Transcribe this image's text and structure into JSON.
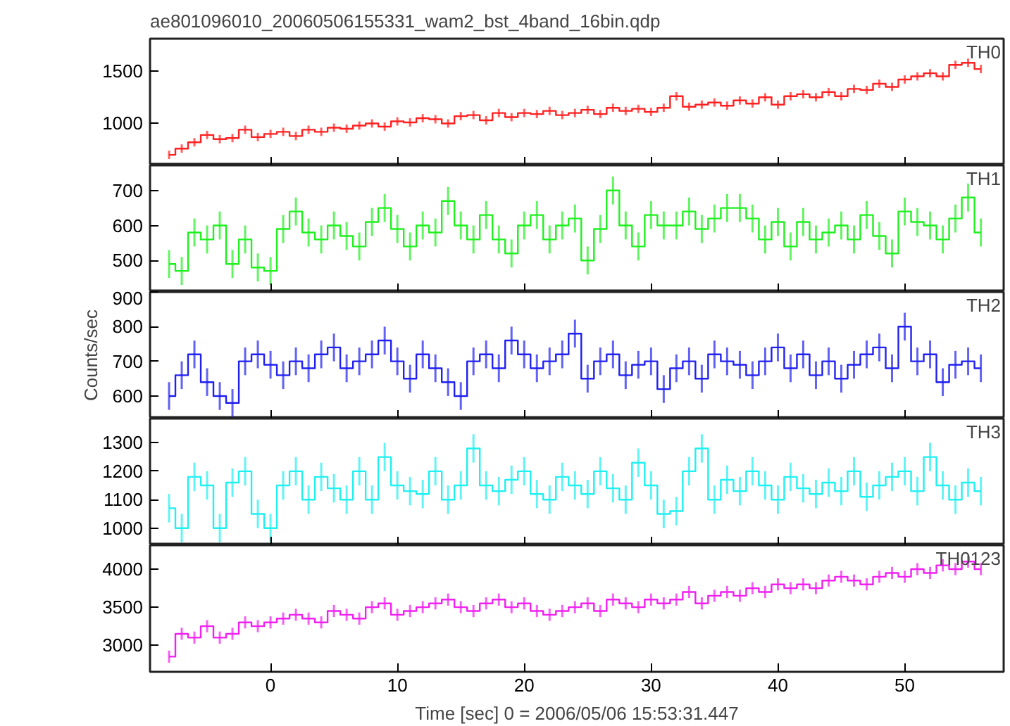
{
  "chart_data": [
    {
      "type": "step",
      "title": "ae801096010_20060506155331_wam2_bst_4band_16bin.qdp",
      "annotations": [
        "TH0"
      ],
      "tick_labels": "y",
      "grid": false,
      "xlim": [
        -9.5,
        57.8
      ],
      "xticks": [
        0,
        10,
        20,
        30,
        40,
        50
      ],
      "ylim": [
        600,
        1810
      ],
      "yticks": [
        1000,
        1500
      ],
      "x": [
        -8,
        -7,
        -6,
        -5,
        -4,
        -3,
        -2,
        -1,
        0,
        1,
        2,
        3,
        4,
        5,
        6,
        7,
        8,
        9,
        10,
        11,
        12,
        13,
        14,
        15,
        16,
        17,
        18,
        19,
        20,
        21,
        22,
        23,
        24,
        25,
        26,
        27,
        28,
        29,
        30,
        31,
        32,
        33,
        34,
        35,
        36,
        37,
        38,
        39,
        40,
        41,
        42,
        43,
        44,
        45,
        46,
        47,
        48,
        49,
        50,
        51,
        52,
        53,
        54,
        55,
        56
      ],
      "series": [
        {
          "color": "#ff2020",
          "values": [
            700,
            760,
            820,
            890,
            850,
            860,
            940,
            870,
            900,
            920,
            880,
            940,
            920,
            960,
            950,
            980,
            1000,
            970,
            1020,
            1010,
            1050,
            1040,
            1000,
            1070,
            1080,
            1030,
            1100,
            1060,
            1100,
            1090,
            1120,
            1080,
            1100,
            1130,
            1090,
            1150,
            1120,
            1140,
            1110,
            1150,
            1260,
            1160,
            1180,
            1200,
            1170,
            1220,
            1190,
            1250,
            1180,
            1260,
            1280,
            1250,
            1300,
            1260,
            1330,
            1320,
            1380,
            1350,
            1420,
            1450,
            1480,
            1450,
            1560,
            1580,
            1520
          ],
          "errors": [
            40,
            40,
            40,
            40,
            40,
            40,
            40,
            40,
            40,
            40,
            40,
            40,
            40,
            40,
            40,
            40,
            40,
            40,
            40,
            40,
            40,
            40,
            40,
            40,
            40,
            40,
            40,
            40,
            40,
            40,
            40,
            40,
            40,
            40,
            40,
            40,
            40,
            40,
            40,
            40,
            40,
            40,
            40,
            40,
            40,
            40,
            40,
            40,
            40,
            40,
            40,
            40,
            40,
            40,
            40,
            40,
            40,
            40,
            40,
            40,
            40,
            40,
            40,
            40,
            40
          ]
        }
      ]
    },
    {
      "type": "step",
      "annotations": [
        "TH1"
      ],
      "tick_labels": "y",
      "grid": false,
      "xlim": [
        -9.5,
        57.8
      ],
      "xticks": [
        0,
        10,
        20,
        30,
        40,
        50
      ],
      "ylim": [
        410,
        772
      ],
      "yticks": [
        500,
        600,
        700
      ],
      "x": [
        -8,
        -7,
        -6,
        -5,
        -4,
        -3,
        -2,
        -1,
        0,
        1,
        2,
        3,
        4,
        5,
        6,
        7,
        8,
        9,
        10,
        11,
        12,
        13,
        14,
        15,
        16,
        17,
        18,
        19,
        20,
        21,
        22,
        23,
        24,
        25,
        26,
        27,
        28,
        29,
        30,
        31,
        32,
        33,
        34,
        35,
        36,
        37,
        38,
        39,
        40,
        41,
        42,
        43,
        44,
        45,
        46,
        47,
        48,
        49,
        50,
        51,
        52,
        53,
        54,
        55,
        56
      ],
      "series": [
        {
          "color": "#20f020",
          "values": [
            490,
            470,
            580,
            560,
            600,
            490,
            560,
            480,
            470,
            590,
            640,
            580,
            560,
            600,
            570,
            540,
            610,
            650,
            590,
            540,
            600,
            580,
            670,
            600,
            560,
            630,
            560,
            520,
            600,
            630,
            560,
            600,
            620,
            500,
            590,
            700,
            600,
            540,
            630,
            600,
            600,
            640,
            590,
            620,
            650,
            650,
            620,
            560,
            610,
            540,
            610,
            560,
            580,
            600,
            560,
            630,
            570,
            520,
            640,
            610,
            600,
            560,
            620,
            680,
            580
          ],
          "errors": [
            40,
            40,
            40,
            40,
            40,
            40,
            40,
            40,
            40,
            40,
            40,
            40,
            40,
            40,
            40,
            40,
            40,
            40,
            40,
            40,
            40,
            40,
            40,
            40,
            40,
            40,
            40,
            40,
            40,
            40,
            40,
            40,
            40,
            40,
            40,
            40,
            40,
            40,
            40,
            40,
            40,
            40,
            40,
            40,
            40,
            40,
            40,
            40,
            40,
            40,
            40,
            40,
            40,
            40,
            40,
            40,
            40,
            40,
            40,
            40,
            40,
            40,
            40,
            40,
            40
          ]
        }
      ]
    },
    {
      "type": "step",
      "annotations": [
        "TH2"
      ],
      "ylabel": "Counts/sec",
      "tick_labels": "y",
      "grid": false,
      "xlim": [
        -9.5,
        57.8
      ],
      "xticks": [
        0,
        10,
        20,
        30,
        40,
        50
      ],
      "ylim": [
        535,
        900
      ],
      "yticks": [
        600,
        700,
        800,
        900
      ],
      "x": [
        -8,
        -7,
        -6,
        -5,
        -4,
        -3,
        -2,
        -1,
        0,
        1,
        2,
        3,
        4,
        5,
        6,
        7,
        8,
        9,
        10,
        11,
        12,
        13,
        14,
        15,
        16,
        17,
        18,
        19,
        20,
        21,
        22,
        23,
        24,
        25,
        26,
        27,
        28,
        29,
        30,
        31,
        32,
        33,
        34,
        35,
        36,
        37,
        38,
        39,
        40,
        41,
        42,
        43,
        44,
        45,
        46,
        47,
        48,
        49,
        50,
        51,
        52,
        53,
        54,
        55,
        56
      ],
      "series": [
        {
          "color": "#2020f0",
          "values": [
            600,
            660,
            720,
            640,
            600,
            580,
            700,
            720,
            690,
            660,
            700,
            680,
            720,
            740,
            680,
            700,
            720,
            760,
            700,
            650,
            720,
            680,
            640,
            600,
            700,
            720,
            680,
            760,
            720,
            680,
            700,
            720,
            780,
            650,
            700,
            720,
            660,
            690,
            700,
            620,
            680,
            700,
            650,
            720,
            700,
            690,
            660,
            700,
            740,
            680,
            720,
            660,
            700,
            650,
            690,
            720,
            740,
            680,
            800,
            700,
            720,
            640,
            690,
            700,
            680
          ],
          "errors": [
            40,
            40,
            40,
            40,
            40,
            40,
            40,
            40,
            40,
            40,
            40,
            40,
            40,
            40,
            40,
            40,
            40,
            40,
            40,
            40,
            40,
            40,
            40,
            40,
            40,
            40,
            40,
            40,
            40,
            40,
            40,
            40,
            40,
            40,
            40,
            40,
            40,
            40,
            40,
            40,
            40,
            40,
            40,
            40,
            40,
            40,
            40,
            40,
            40,
            40,
            40,
            40,
            40,
            40,
            40,
            40,
            40,
            40,
            40,
            40,
            40,
            40,
            40,
            40,
            40
          ]
        }
      ]
    },
    {
      "type": "step",
      "annotations": [
        "TH3"
      ],
      "tick_labels": "y",
      "grid": false,
      "xlim": [
        -9.5,
        57.8
      ],
      "xticks": [
        0,
        10,
        20,
        30,
        40,
        50
      ],
      "ylim": [
        940,
        1385
      ],
      "yticks": [
        1000,
        1100,
        1200,
        1300
      ],
      "x": [
        -8,
        -7,
        -6,
        -5,
        -4,
        -3,
        -2,
        -1,
        0,
        1,
        2,
        3,
        4,
        5,
        6,
        7,
        8,
        9,
        10,
        11,
        12,
        13,
        14,
        15,
        16,
        17,
        18,
        19,
        20,
        21,
        22,
        23,
        24,
        25,
        26,
        27,
        28,
        29,
        30,
        31,
        32,
        33,
        34,
        35,
        36,
        37,
        38,
        39,
        40,
        41,
        42,
        43,
        44,
        45,
        46,
        47,
        48,
        49,
        50,
        51,
        52,
        53,
        54,
        55,
        56
      ],
      "series": [
        {
          "color": "#20f0f0",
          "values": [
            1070,
            1000,
            1180,
            1150,
            1000,
            1160,
            1200,
            1050,
            1000,
            1150,
            1200,
            1100,
            1180,
            1140,
            1100,
            1200,
            1100,
            1250,
            1150,
            1130,
            1120,
            1200,
            1100,
            1150,
            1280,
            1150,
            1130,
            1170,
            1200,
            1120,
            1100,
            1180,
            1150,
            1120,
            1200,
            1140,
            1100,
            1230,
            1150,
            1050,
            1060,
            1200,
            1280,
            1100,
            1170,
            1130,
            1200,
            1150,
            1100,
            1180,
            1140,
            1120,
            1160,
            1130,
            1200,
            1110,
            1150,
            1180,
            1200,
            1130,
            1250,
            1150,
            1100,
            1160,
            1130
          ],
          "errors": [
            50,
            50,
            50,
            50,
            50,
            50,
            50,
            50,
            50,
            50,
            50,
            50,
            50,
            50,
            50,
            50,
            50,
            50,
            50,
            50,
            50,
            50,
            50,
            50,
            50,
            50,
            50,
            50,
            50,
            50,
            50,
            50,
            50,
            50,
            50,
            50,
            50,
            50,
            50,
            50,
            50,
            50,
            50,
            50,
            50,
            50,
            50,
            50,
            50,
            50,
            50,
            50,
            50,
            50,
            50,
            50,
            50,
            50,
            50,
            50,
            50,
            50,
            50,
            50,
            50
          ]
        }
      ]
    },
    {
      "type": "step",
      "annotations": [
        "TH0123"
      ],
      "xlabel": "Time [sec] 0 = 2006/05/06 15:53:31.447",
      "grid": false,
      "xlim": [
        -9.5,
        57.8
      ],
      "xticks": [
        0,
        10,
        20,
        30,
        40,
        50
      ],
      "ylim": [
        2650,
        4315
      ],
      "yticks": [
        3000,
        3500,
        4000
      ],
      "x": [
        -8,
        -7,
        -6,
        -5,
        -4,
        -3,
        -2,
        -1,
        0,
        1,
        2,
        3,
        4,
        5,
        6,
        7,
        8,
        9,
        10,
        11,
        12,
        13,
        14,
        15,
        16,
        17,
        18,
        19,
        20,
        21,
        22,
        23,
        24,
        25,
        26,
        27,
        28,
        29,
        30,
        31,
        32,
        33,
        34,
        35,
        36,
        37,
        38,
        39,
        40,
        41,
        42,
        43,
        44,
        45,
        46,
        47,
        48,
        49,
        50,
        51,
        52,
        53,
        54,
        55,
        56
      ],
      "series": [
        {
          "color": "#f020f0",
          "values": [
            2850,
            3150,
            3100,
            3250,
            3100,
            3150,
            3300,
            3250,
            3300,
            3350,
            3400,
            3350,
            3300,
            3450,
            3400,
            3350,
            3500,
            3550,
            3400,
            3450,
            3500,
            3550,
            3600,
            3500,
            3450,
            3550,
            3600,
            3500,
            3550,
            3450,
            3400,
            3450,
            3500,
            3550,
            3450,
            3600,
            3550,
            3500,
            3600,
            3550,
            3600,
            3700,
            3550,
            3650,
            3700,
            3650,
            3750,
            3700,
            3800,
            3750,
            3800,
            3750,
            3850,
            3900,
            3850,
            3800,
            3900,
            3950,
            3900,
            4000,
            3950,
            4050,
            4000,
            4100,
            4000
          ],
          "errors": [
            80,
            80,
            80,
            80,
            80,
            80,
            80,
            80,
            80,
            80,
            80,
            80,
            80,
            80,
            80,
            80,
            80,
            80,
            80,
            80,
            80,
            80,
            80,
            80,
            80,
            80,
            80,
            80,
            80,
            80,
            80,
            80,
            80,
            80,
            80,
            80,
            80,
            80,
            80,
            80,
            80,
            80,
            80,
            80,
            80,
            80,
            80,
            80,
            80,
            80,
            80,
            80,
            80,
            80,
            80,
            80,
            80,
            80,
            80,
            80,
            80,
            80,
            80,
            80,
            80
          ]
        }
      ]
    }
  ]
}
